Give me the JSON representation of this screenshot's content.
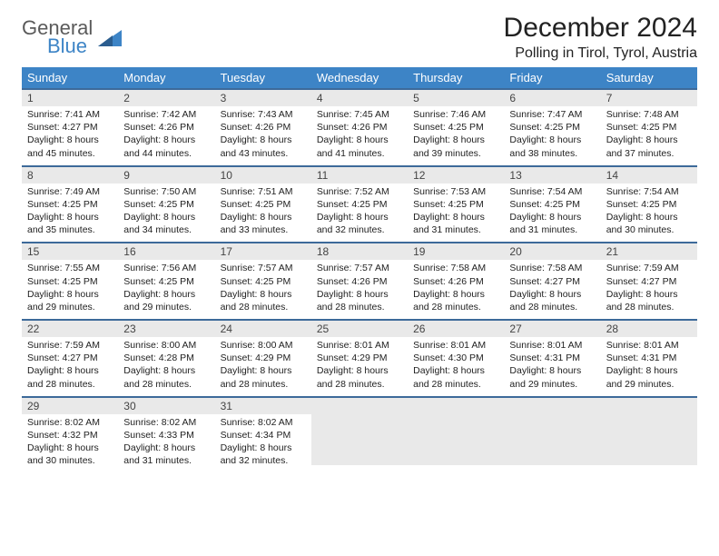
{
  "brand": {
    "line1": "General",
    "line2": "Blue"
  },
  "title": "December 2024",
  "subtitle": "Polling in Tirol, Tyrol, Austria",
  "colors": {
    "header_bg": "#3d84c6",
    "header_text": "#ffffff",
    "row_border": "#3d6a9a",
    "daynum_bg": "#e9e9e9",
    "logo_blue": "#3d84c6",
    "logo_gray": "#5a5a5a"
  },
  "weekdays": [
    "Sunday",
    "Monday",
    "Tuesday",
    "Wednesday",
    "Thursday",
    "Friday",
    "Saturday"
  ],
  "weeks": [
    [
      {
        "n": "1",
        "sr": "7:41 AM",
        "ss": "4:27 PM",
        "dl": "8 hours and 45 minutes."
      },
      {
        "n": "2",
        "sr": "7:42 AM",
        "ss": "4:26 PM",
        "dl": "8 hours and 44 minutes."
      },
      {
        "n": "3",
        "sr": "7:43 AM",
        "ss": "4:26 PM",
        "dl": "8 hours and 43 minutes."
      },
      {
        "n": "4",
        "sr": "7:45 AM",
        "ss": "4:26 PM",
        "dl": "8 hours and 41 minutes."
      },
      {
        "n": "5",
        "sr": "7:46 AM",
        "ss": "4:25 PM",
        "dl": "8 hours and 39 minutes."
      },
      {
        "n": "6",
        "sr": "7:47 AM",
        "ss": "4:25 PM",
        "dl": "8 hours and 38 minutes."
      },
      {
        "n": "7",
        "sr": "7:48 AM",
        "ss": "4:25 PM",
        "dl": "8 hours and 37 minutes."
      }
    ],
    [
      {
        "n": "8",
        "sr": "7:49 AM",
        "ss": "4:25 PM",
        "dl": "8 hours and 35 minutes."
      },
      {
        "n": "9",
        "sr": "7:50 AM",
        "ss": "4:25 PM",
        "dl": "8 hours and 34 minutes."
      },
      {
        "n": "10",
        "sr": "7:51 AM",
        "ss": "4:25 PM",
        "dl": "8 hours and 33 minutes."
      },
      {
        "n": "11",
        "sr": "7:52 AM",
        "ss": "4:25 PM",
        "dl": "8 hours and 32 minutes."
      },
      {
        "n": "12",
        "sr": "7:53 AM",
        "ss": "4:25 PM",
        "dl": "8 hours and 31 minutes."
      },
      {
        "n": "13",
        "sr": "7:54 AM",
        "ss": "4:25 PM",
        "dl": "8 hours and 31 minutes."
      },
      {
        "n": "14",
        "sr": "7:54 AM",
        "ss": "4:25 PM",
        "dl": "8 hours and 30 minutes."
      }
    ],
    [
      {
        "n": "15",
        "sr": "7:55 AM",
        "ss": "4:25 PM",
        "dl": "8 hours and 29 minutes."
      },
      {
        "n": "16",
        "sr": "7:56 AM",
        "ss": "4:25 PM",
        "dl": "8 hours and 29 minutes."
      },
      {
        "n": "17",
        "sr": "7:57 AM",
        "ss": "4:25 PM",
        "dl": "8 hours and 28 minutes."
      },
      {
        "n": "18",
        "sr": "7:57 AM",
        "ss": "4:26 PM",
        "dl": "8 hours and 28 minutes."
      },
      {
        "n": "19",
        "sr": "7:58 AM",
        "ss": "4:26 PM",
        "dl": "8 hours and 28 minutes."
      },
      {
        "n": "20",
        "sr": "7:58 AM",
        "ss": "4:27 PM",
        "dl": "8 hours and 28 minutes."
      },
      {
        "n": "21",
        "sr": "7:59 AM",
        "ss": "4:27 PM",
        "dl": "8 hours and 28 minutes."
      }
    ],
    [
      {
        "n": "22",
        "sr": "7:59 AM",
        "ss": "4:27 PM",
        "dl": "8 hours and 28 minutes."
      },
      {
        "n": "23",
        "sr": "8:00 AM",
        "ss": "4:28 PM",
        "dl": "8 hours and 28 minutes."
      },
      {
        "n": "24",
        "sr": "8:00 AM",
        "ss": "4:29 PM",
        "dl": "8 hours and 28 minutes."
      },
      {
        "n": "25",
        "sr": "8:01 AM",
        "ss": "4:29 PM",
        "dl": "8 hours and 28 minutes."
      },
      {
        "n": "26",
        "sr": "8:01 AM",
        "ss": "4:30 PM",
        "dl": "8 hours and 28 minutes."
      },
      {
        "n": "27",
        "sr": "8:01 AM",
        "ss": "4:31 PM",
        "dl": "8 hours and 29 minutes."
      },
      {
        "n": "28",
        "sr": "8:01 AM",
        "ss": "4:31 PM",
        "dl": "8 hours and 29 minutes."
      }
    ],
    [
      {
        "n": "29",
        "sr": "8:02 AM",
        "ss": "4:32 PM",
        "dl": "8 hours and 30 minutes."
      },
      {
        "n": "30",
        "sr": "8:02 AM",
        "ss": "4:33 PM",
        "dl": "8 hours and 31 minutes."
      },
      {
        "n": "31",
        "sr": "8:02 AM",
        "ss": "4:34 PM",
        "dl": "8 hours and 32 minutes."
      },
      null,
      null,
      null,
      null
    ]
  ],
  "labels": {
    "sunrise": "Sunrise:",
    "sunset": "Sunset:",
    "daylight": "Daylight:"
  }
}
